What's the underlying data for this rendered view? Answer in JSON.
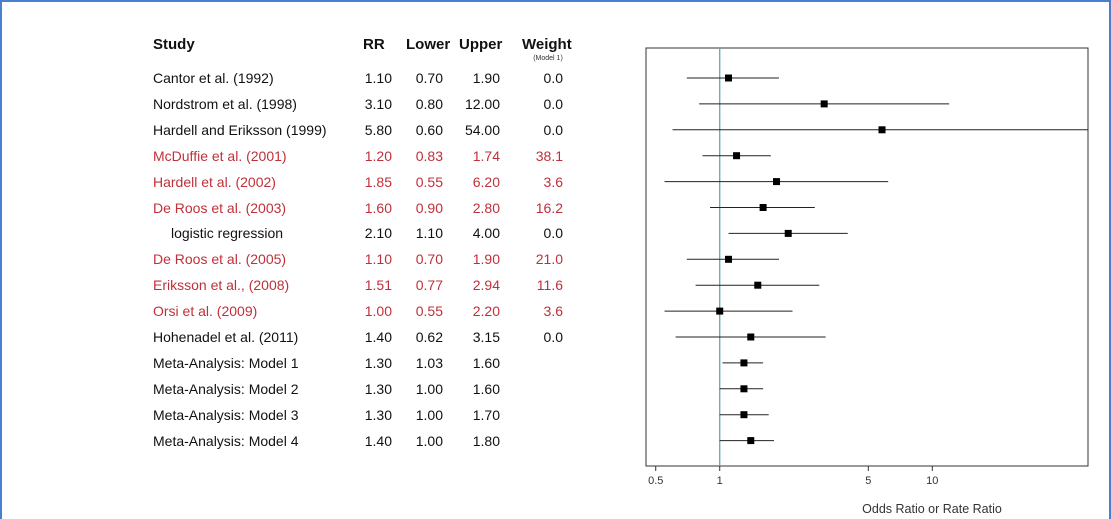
{
  "table": {
    "headers": {
      "study": "Study",
      "rr": "RR",
      "lower": "Lower",
      "upper": "Upper",
      "weight": "Weight",
      "weight_sub": "(Model 1)"
    },
    "rows": [
      {
        "study": "Cantor et al. (1992)",
        "rr": "1.10",
        "lower": "0.70",
        "upper": "1.90",
        "weight": "0.0",
        "highlight": false
      },
      {
        "study": "Nordstrom et al. (1998)",
        "rr": "3.10",
        "lower": "0.80",
        "upper": "12.00",
        "weight": "0.0",
        "highlight": false
      },
      {
        "study": "Hardell and Eriksson (1999)",
        "rr": "5.80",
        "lower": "0.60",
        "upper": "54.00",
        "weight": "0.0",
        "highlight": false
      },
      {
        "study": "McDuffie et al. (2001)",
        "rr": "1.20",
        "lower": "0.83",
        "upper": "1.74",
        "weight": "38.1",
        "highlight": true
      },
      {
        "study": "Hardell et al. (2002)",
        "rr": "1.85",
        "lower": "0.55",
        "upper": "6.20",
        "weight": "3.6",
        "highlight": true
      },
      {
        "study": "De Roos et al. (2003)",
        "rr": "1.60",
        "lower": "0.90",
        "upper": "2.80",
        "weight": "16.2",
        "highlight": true
      },
      {
        "study": "logistic regression",
        "rr": "2.10",
        "lower": "1.10",
        "upper": "4.00",
        "weight": "0.0",
        "highlight": false,
        "indent": true
      },
      {
        "study": "De Roos et al. (2005)",
        "rr": "1.10",
        "lower": "0.70",
        "upper": "1.90",
        "weight": "21.0",
        "highlight": true
      },
      {
        "study": "Eriksson et al., (2008)",
        "rr": "1.51",
        "lower": "0.77",
        "upper": "2.94",
        "weight": "11.6",
        "highlight": true
      },
      {
        "study": "Orsi et al. (2009)",
        "rr": "1.00",
        "lower": "0.55",
        "upper": "2.20",
        "weight": "3.6",
        "highlight": true
      },
      {
        "study": "Hohenadel et al. (2011)",
        "rr": "1.40",
        "lower": "0.62",
        "upper": "3.15",
        "weight": "0.0",
        "highlight": false
      },
      {
        "study": "Meta-Analysis: Model 1",
        "rr": "1.30",
        "lower": "1.03",
        "upper": "1.60",
        "weight": "",
        "highlight": false
      },
      {
        "study": "Meta-Analysis: Model 2",
        "rr": "1.30",
        "lower": "1.00",
        "upper": "1.60",
        "weight": "",
        "highlight": false
      },
      {
        "study": "Meta-Analysis: Model 3",
        "rr": "1.30",
        "lower": "1.00",
        "upper": "1.70",
        "weight": "",
        "highlight": false
      },
      {
        "study": "Meta-Analysis: Model 4",
        "rr": "1.40",
        "lower": "1.00",
        "upper": "1.80",
        "weight": "",
        "highlight": false
      }
    ]
  },
  "colors": {
    "highlight": "#c0303a",
    "reference_line": "#5fa8b0",
    "frame": "#4a7fd0",
    "marker": "#000000"
  },
  "chart_data": {
    "type": "forest",
    "scale": "log",
    "xlabel": "Odds Ratio or Rate Ratio",
    "xticks": [
      0.5,
      1,
      5,
      10
    ],
    "xtick_labels": [
      "0.5",
      "1",
      "5",
      "10"
    ],
    "xlim": [
      0.45,
      54
    ],
    "reference_value": 1,
    "points": [
      {
        "est": 1.1,
        "lo": 0.7,
        "hi": 1.9
      },
      {
        "est": 3.1,
        "lo": 0.8,
        "hi": 12.0
      },
      {
        "est": 5.8,
        "lo": 0.6,
        "hi": 54.0
      },
      {
        "est": 1.2,
        "lo": 0.83,
        "hi": 1.74
      },
      {
        "est": 1.85,
        "lo": 0.55,
        "hi": 6.2
      },
      {
        "est": 1.6,
        "lo": 0.9,
        "hi": 2.8
      },
      {
        "est": 2.1,
        "lo": 1.1,
        "hi": 4.0
      },
      {
        "est": 1.1,
        "lo": 0.7,
        "hi": 1.9
      },
      {
        "est": 1.51,
        "lo": 0.77,
        "hi": 2.94
      },
      {
        "est": 1.0,
        "lo": 0.55,
        "hi": 2.2
      },
      {
        "est": 1.4,
        "lo": 0.62,
        "hi": 3.15
      },
      {
        "est": 1.3,
        "lo": 1.03,
        "hi": 1.6
      },
      {
        "est": 1.3,
        "lo": 1.0,
        "hi": 1.6
      },
      {
        "est": 1.3,
        "lo": 1.0,
        "hi": 1.7
      },
      {
        "est": 1.4,
        "lo": 1.0,
        "hi": 1.8
      }
    ]
  }
}
